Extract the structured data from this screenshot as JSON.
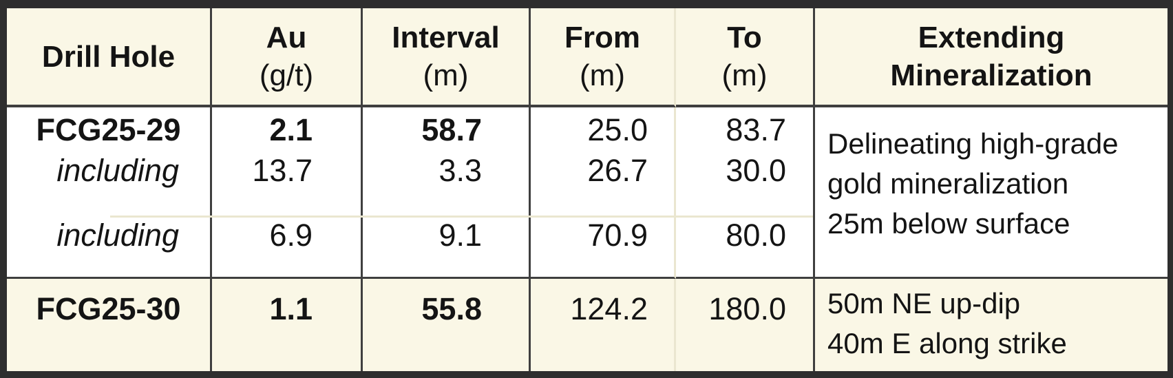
{
  "table": {
    "columns": [
      {
        "title": "Drill Hole"
      },
      {
        "title": "Au",
        "unit": "(g/t)"
      },
      {
        "title": "Interval",
        "unit": "(m)"
      },
      {
        "title": "From",
        "unit": "(m)"
      },
      {
        "title": "To",
        "unit": "(m)"
      },
      {
        "title": "Extending",
        "title2": "Mineralization"
      }
    ],
    "rows": [
      {
        "hole": "FCG25-29",
        "au": "2.1",
        "interval": "58.7",
        "from": "25.0",
        "to": "83.7"
      },
      {
        "hole": "including",
        "au": "13.7",
        "interval": "3.3",
        "from": "26.7",
        "to": "30.0"
      },
      {
        "hole": "including",
        "au": "6.9",
        "interval": "9.1",
        "from": "70.9",
        "to": "80.0"
      },
      {
        "hole": "FCG25-30",
        "au": "1.1",
        "interval": "55.8",
        "from": "124.2",
        "to": "180.0"
      }
    ],
    "notes": [
      {
        "line1": "Delineating high-grade",
        "line2": "gold mineralization",
        "line3": "25m below surface"
      },
      {
        "line1": "50m NE up-dip",
        "line2": "40m E along strike"
      }
    ]
  },
  "colors": {
    "header_background": "#faf7e6",
    "highlight_row_background": "#faf7e6",
    "body_background": "#ffffff",
    "frame_border": "#2e2e2e",
    "grid_line": "#3f3f3f",
    "faint_line": "#eae6d0",
    "text": "#141414"
  },
  "chart_data": {
    "type": "table",
    "columns": [
      "Drill Hole",
      "Au (g/t)",
      "Interval (m)",
      "From (m)",
      "To (m)",
      "Extending Mineralization"
    ],
    "rows": [
      [
        "FCG25-29",
        2.1,
        58.7,
        25.0,
        83.7,
        "Delineating high-grade gold mineralization 25m below surface"
      ],
      [
        "including",
        13.7,
        3.3,
        26.7,
        30.0,
        ""
      ],
      [
        "including",
        6.9,
        9.1,
        70.9,
        80.0,
        ""
      ],
      [
        "FCG25-30",
        1.1,
        55.8,
        124.2,
        180.0,
        "50m NE up-dip 40m E along strike"
      ]
    ]
  }
}
